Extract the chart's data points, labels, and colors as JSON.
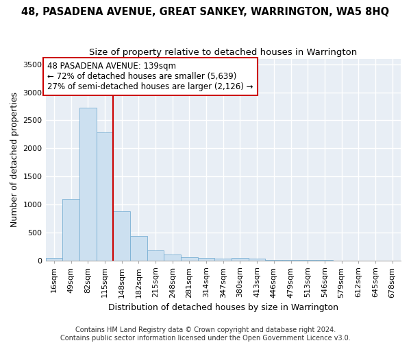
{
  "title": "48, PASADENA AVENUE, GREAT SANKEY, WARRINGTON, WA5 8HQ",
  "subtitle": "Size of property relative to detached houses in Warrington",
  "xlabel": "Distribution of detached houses by size in Warrington",
  "ylabel": "Number of detached properties",
  "categories": [
    "16sqm",
    "49sqm",
    "82sqm",
    "115sqm",
    "148sqm",
    "182sqm",
    "215sqm",
    "248sqm",
    "281sqm",
    "314sqm",
    "347sqm",
    "380sqm",
    "413sqm",
    "446sqm",
    "479sqm",
    "513sqm",
    "546sqm",
    "579sqm",
    "612sqm",
    "645sqm",
    "678sqm"
  ],
  "values": [
    45,
    1100,
    2730,
    2280,
    875,
    430,
    175,
    100,
    60,
    45,
    30,
    45,
    30,
    10,
    5,
    2,
    1,
    0,
    0,
    0,
    0
  ],
  "bar_color": "#cce0f0",
  "bar_edge_color": "#7ab0d4",
  "background_color": "#e8eef5",
  "grid_color": "#ffffff",
  "marker_bar_index": 4,
  "annotation_line_color": "#cc0000",
  "annotation_text_line1": "48 PASADENA AVENUE: 139sqm",
  "annotation_text_line2": "← 72% of detached houses are smaller (5,639)",
  "annotation_text_line3": "27% of semi-detached houses are larger (2,126) →",
  "annotation_box_color": "#ffffff",
  "annotation_box_edge": "#cc0000",
  "footer_line1": "Contains HM Land Registry data © Crown copyright and database right 2024.",
  "footer_line2": "Contains public sector information licensed under the Open Government Licence v3.0.",
  "ylim": [
    0,
    3600
  ],
  "yticks": [
    0,
    500,
    1000,
    1500,
    2000,
    2500,
    3000,
    3500
  ],
  "title_fontsize": 10.5,
  "subtitle_fontsize": 9.5,
  "axis_label_fontsize": 9,
  "tick_fontsize": 8,
  "annotation_fontsize": 8.5,
  "footer_fontsize": 7
}
